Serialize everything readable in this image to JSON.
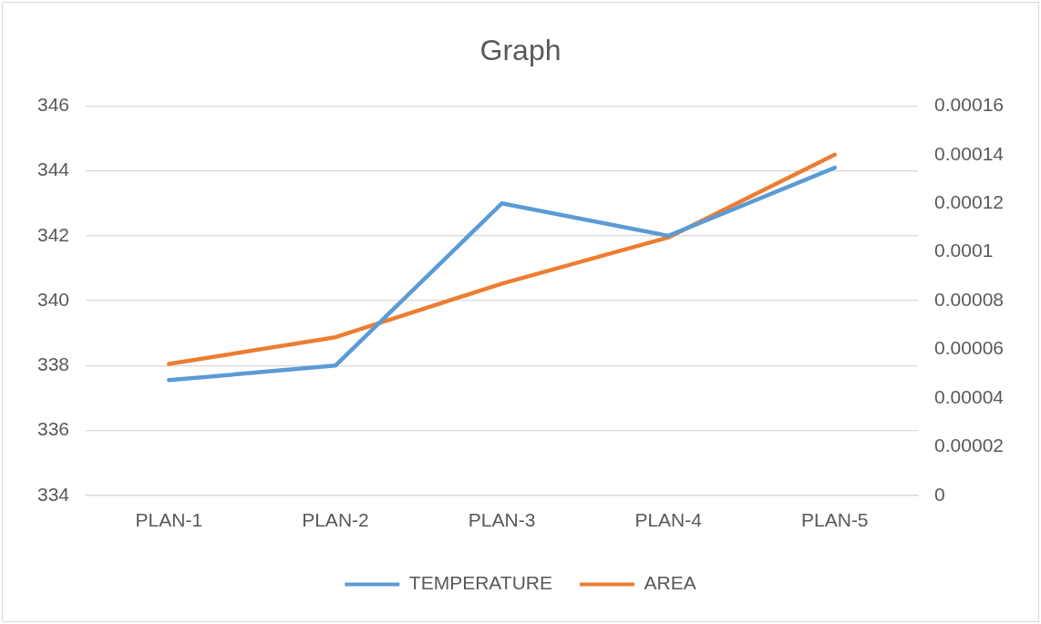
{
  "chart_data": {
    "type": "line",
    "title": "Graph",
    "categories": [
      "PLAN-1",
      "PLAN-2",
      "PLAN-3",
      "PLAN-4",
      "PLAN-5"
    ],
    "series": [
      {
        "name": "TEMPERATURE",
        "color": "#5b9bd5",
        "values": [
          337.55,
          338,
          343,
          342,
          344.1
        ]
      },
      {
        "name": "AREA",
        "color": "#ed7d31",
        "axis": "y2",
        "values": [
          5.4e-05,
          6.5e-05,
          8.7e-05,
          0.000106,
          0.00014
        ]
      }
    ],
    "ylim": [
      334,
      346
    ],
    "yticks": [
      334,
      336,
      338,
      340,
      342,
      344,
      346
    ],
    "y2lim": [
      0,
      0.00016
    ],
    "y2ticks": [
      0,
      {
        "value": 2e-05,
        "label": "0.00002"
      },
      {
        "value": 4e-05,
        "label": "0.00004"
      },
      {
        "value": 6e-05,
        "label": "0.00006"
      },
      {
        "value": 8e-05,
        "label": "0.00008"
      },
      0.0001,
      0.00012,
      0.00014,
      0.00016
    ],
    "grid": "y",
    "legend": "bottom",
    "marker": "none",
    "line_style": "solid"
  }
}
